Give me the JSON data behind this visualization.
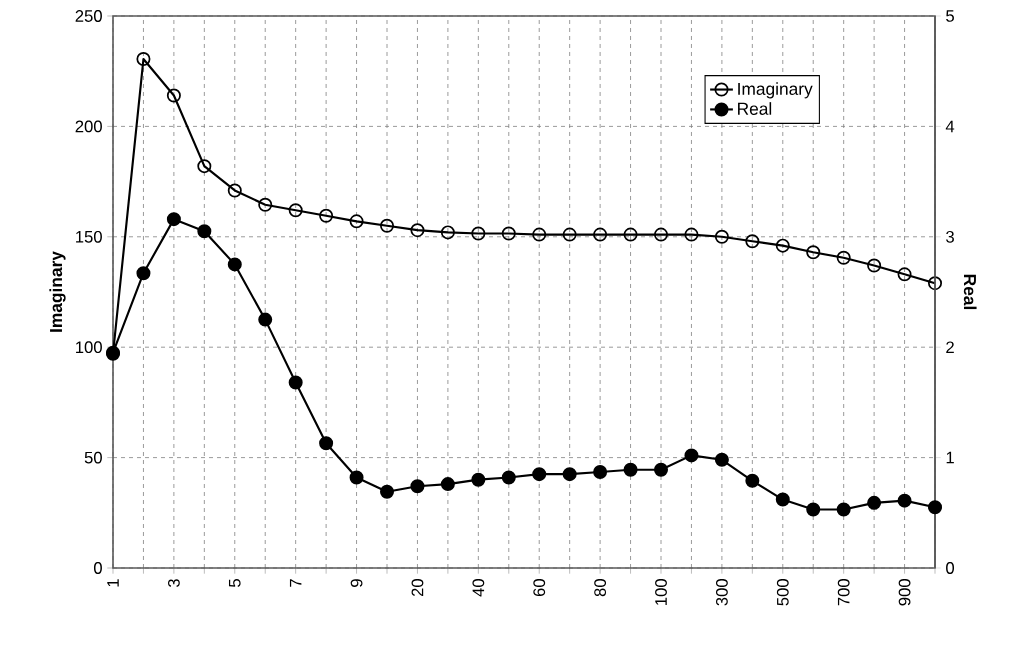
{
  "chart_data": {
    "type": "line",
    "ylabel": "Imaginary",
    "y2label": "Real",
    "categories": [
      "1",
      null,
      "3",
      null,
      "5",
      null,
      "7",
      null,
      "9",
      null,
      "20",
      null,
      "40",
      null,
      "60",
      null,
      "80",
      null,
      "100",
      null,
      "300",
      null,
      "500",
      null,
      "700",
      null,
      "900",
      null
    ],
    "series": [
      {
        "name": "Imaginary",
        "color": "#000000",
        "axis": "y",
        "values": [
          97,
          230.5,
          214,
          182,
          171,
          164.5,
          162,
          159.5,
          157,
          155,
          153,
          152,
          151.5,
          151.5,
          151,
          151,
          151,
          151,
          151,
          151,
          150,
          148,
          146,
          143,
          140.5,
          137,
          133,
          129
        ]
      },
      {
        "name": "Real",
        "color": "#000000",
        "axis": "y2",
        "values": [
          1.95,
          2.67,
          3.16,
          3.05,
          2.75,
          2.25,
          1.68,
          1.13,
          0.82,
          0.69,
          0.74,
          0.76,
          0.8,
          0.82,
          0.85,
          0.85,
          0.87,
          0.89,
          0.89,
          1.02,
          0.98,
          0.79,
          0.62,
          0.53,
          0.53,
          0.59,
          0.61,
          0.55
        ]
      }
    ],
    "ylim": [
      0,
      250
    ],
    "yticks": [
      0,
      50,
      100,
      150,
      200,
      250
    ],
    "y2lim": [
      0,
      5
    ],
    "y2ticks": [
      0,
      1,
      2,
      3,
      4,
      5
    ],
    "grid": true,
    "legend": "top right",
    "marker": "circle",
    "line_style": "solid"
  }
}
